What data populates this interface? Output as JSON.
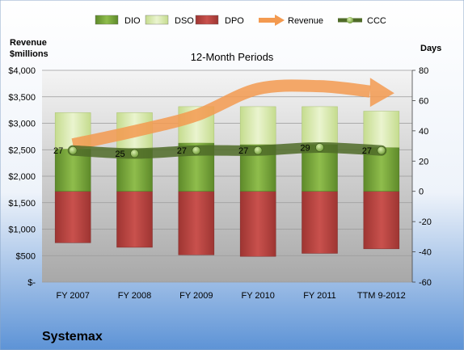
{
  "chart_data": {
    "type": "bar",
    "title": "12-Month Periods",
    "company": "Systemax",
    "left_axis_label": [
      "Revenue",
      "$millions"
    ],
    "right_axis_label": "Days",
    "categories": [
      "FY 2007",
      "FY 2008",
      "FY 2009",
      "FY 2010",
      "FY 2011",
      "TTM 9-2012"
    ],
    "left_axis": {
      "min": 0,
      "max": 4000,
      "step": 500,
      "tick_labels": [
        "$-",
        "$500",
        "$1,000",
        "$1,500",
        "$2,000",
        "$2,500",
        "$3,000",
        "$3,500",
        "$4,000"
      ]
    },
    "right_axis": {
      "min": -60,
      "max": 80,
      "step": 20,
      "tick_labels": [
        "-60",
        "-40",
        "-20",
        "0",
        "20",
        "40",
        "60",
        "80"
      ]
    },
    "legend": {
      "placement": "top",
      "items": [
        {
          "name": "DIO",
          "color": "#76a036",
          "kind": "bar"
        },
        {
          "name": "DSO",
          "color": "#d6e8a8",
          "kind": "bar"
        },
        {
          "name": "DPO",
          "color": "#c0504d",
          "kind": "bar"
        },
        {
          "name": "Revenue",
          "color": "#f39a50",
          "kind": "arrow"
        },
        {
          "name": "CCC",
          "color": "#4f6b28",
          "kind": "line"
        }
      ]
    },
    "series": [
      {
        "name": "DIO",
        "axis": "right",
        "values": [
          28,
          28,
          32,
          31,
          31,
          29
        ]
      },
      {
        "name": "DSO",
        "axis": "right",
        "values": [
          24,
          24,
          24,
          25,
          25,
          24
        ]
      },
      {
        "name": "DPO",
        "axis": "right",
        "values": [
          -34,
          -37,
          -42,
          -43,
          -41,
          -38
        ]
      },
      {
        "name": "CCC",
        "axis": "right",
        "values": [
          27,
          25,
          27,
          27,
          29,
          27
        ],
        "labels": [
          "27",
          "25",
          "27",
          "27",
          "29",
          "27"
        ]
      },
      {
        "name": "Revenue",
        "axis": "left",
        "values": [
          2600,
          2850,
          3150,
          3650,
          3700,
          3600
        ]
      }
    ],
    "colors": {
      "plot_bg_top": "#f4f4f4",
      "plot_bg_bottom": "#a8a8a8",
      "page_bg_top": "#ffffff",
      "page_bg_bottom": "#5d93d6"
    },
    "grid": true
  }
}
